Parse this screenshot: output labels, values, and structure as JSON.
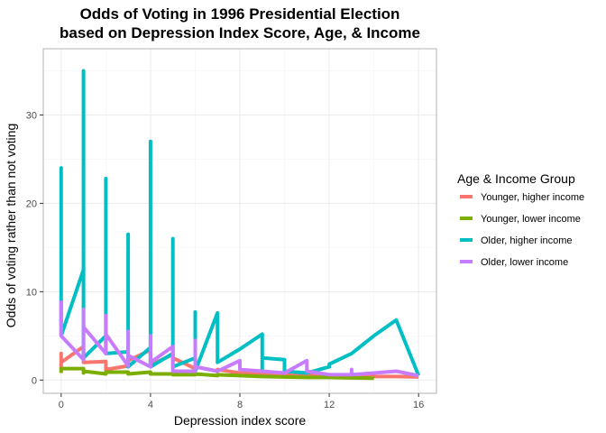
{
  "chart_data": {
    "type": "line",
    "title_lines": [
      "Odds of Voting in 1996 Presidential Election",
      "based on Depression Index Score, Age, & Income"
    ],
    "xlabel": "Depression index score",
    "ylabel": "Odds of voting rather than not voting",
    "xlim": [
      -0.8,
      16.8
    ],
    "ylim": [
      -1.5,
      37.5
    ],
    "x_ticks": [
      0,
      4,
      8,
      12,
      16
    ],
    "y_ticks": [
      0,
      10,
      20,
      30
    ],
    "grid": true,
    "legend": {
      "title": "Age & Income Group",
      "position": "right"
    },
    "series": [
      {
        "name": "Younger, higher income",
        "color": "#F8766D",
        "points": [
          [
            0,
            1.3
          ],
          [
            0,
            3.0
          ],
          [
            0,
            2.0
          ],
          [
            1,
            3.8
          ],
          [
            1,
            2.0
          ],
          [
            2,
            2.1
          ],
          [
            2,
            1.2
          ],
          [
            3,
            1.6
          ],
          [
            3,
            2.2
          ],
          [
            4,
            3.4
          ],
          [
            4,
            1.7
          ],
          [
            5,
            2.9
          ],
          [
            5,
            2.5
          ],
          [
            6,
            1.3
          ],
          [
            6,
            1.5
          ],
          [
            7,
            1.0
          ],
          [
            7,
            1.2
          ],
          [
            8,
            0.8
          ],
          [
            9,
            0.7
          ],
          [
            10,
            0.6
          ],
          [
            11,
            0.55
          ],
          [
            12,
            0.5
          ],
          [
            13,
            0.45
          ],
          [
            14,
            0.4
          ],
          [
            15,
            0.4
          ],
          [
            16,
            0.35
          ]
        ]
      },
      {
        "name": "Younger, lower income",
        "color": "#7CAE00",
        "points": [
          [
            0,
            0.8
          ],
          [
            0,
            1.3
          ],
          [
            1,
            1.3
          ],
          [
            1,
            0.8
          ],
          [
            1,
            1.0
          ],
          [
            2,
            0.7
          ],
          [
            2,
            0.9
          ],
          [
            3,
            0.9
          ],
          [
            3,
            0.7
          ],
          [
            4,
            0.9
          ],
          [
            4,
            0.7
          ],
          [
            5,
            0.7
          ],
          [
            5,
            0.6
          ],
          [
            6,
            0.6
          ],
          [
            6,
            0.7
          ],
          [
            7,
            0.5
          ],
          [
            7,
            0.6
          ],
          [
            8,
            0.5
          ],
          [
            9,
            0.4
          ],
          [
            10,
            0.35
          ],
          [
            11,
            0.3
          ],
          [
            12,
            0.3
          ],
          [
            13,
            0.25
          ],
          [
            14,
            0.2
          ]
        ]
      },
      {
        "name": "Older, higher income",
        "color": "#00BFC4",
        "points": [
          [
            0,
            5.0
          ],
          [
            0,
            24.0
          ],
          [
            0,
            5.0
          ],
          [
            1,
            12.5
          ],
          [
            1,
            35.0
          ],
          [
            1,
            2.5
          ],
          [
            2,
            5.0
          ],
          [
            2,
            22.8
          ],
          [
            2,
            3.0
          ],
          [
            3,
            3.2
          ],
          [
            3,
            16.5
          ],
          [
            3,
            1.5
          ],
          [
            4,
            3.7
          ],
          [
            4,
            27.0
          ],
          [
            4,
            1.5
          ],
          [
            5,
            3.0
          ],
          [
            5,
            16.0
          ],
          [
            5,
            1.5
          ],
          [
            6,
            2.5
          ],
          [
            6,
            7.7
          ],
          [
            6,
            1.0
          ],
          [
            7,
            7.6
          ],
          [
            7,
            2.0
          ],
          [
            8,
            3.5
          ],
          [
            9,
            5.2
          ],
          [
            9,
            1.0
          ],
          [
            9,
            2.5
          ],
          [
            10,
            2.3
          ],
          [
            10,
            1.0
          ],
          [
            11,
            0.8
          ],
          [
            12,
            1.5
          ],
          [
            12,
            1.8
          ],
          [
            13,
            3.0
          ],
          [
            14,
            5.0
          ],
          [
            15,
            6.8
          ],
          [
            16,
            0.5
          ]
        ]
      },
      {
        "name": "Older, lower income",
        "color": "#C77CFF",
        "points": [
          [
            0,
            9.0
          ],
          [
            0,
            5.0
          ],
          [
            1,
            2.3
          ],
          [
            1,
            8.0
          ],
          [
            1,
            6.0
          ],
          [
            2,
            3.0
          ],
          [
            2,
            7.3
          ],
          [
            2,
            5.2
          ],
          [
            3,
            1.6
          ],
          [
            3,
            5.5
          ],
          [
            3,
            2.8
          ],
          [
            4,
            1.5
          ],
          [
            4,
            5.0
          ],
          [
            4,
            2.0
          ],
          [
            5,
            3.8
          ],
          [
            5,
            1.0
          ],
          [
            6,
            1.0
          ],
          [
            6,
            4.5
          ],
          [
            6,
            1.5
          ],
          [
            7,
            1.0
          ],
          [
            8,
            2.2
          ],
          [
            8,
            1.2
          ],
          [
            9,
            1.0
          ],
          [
            10,
            0.8
          ],
          [
            11,
            2.2
          ],
          [
            11,
            1.0
          ],
          [
            12,
            0.6
          ],
          [
            13,
            0.6
          ],
          [
            13,
            1.2
          ],
          [
            13,
            0.6
          ],
          [
            14,
            0.8
          ],
          [
            15,
            1.0
          ],
          [
            16,
            0.5
          ]
        ]
      }
    ]
  }
}
